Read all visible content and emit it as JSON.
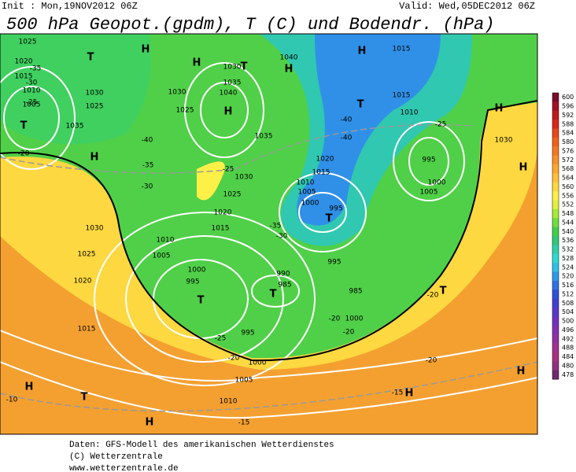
{
  "header": {
    "init": "Init : Mon,19NOV2012 06Z",
    "valid": "Valid: Wed,05DEC2012 06Z",
    "title": "500 hPa Geopot.(gpdm), T (C) und Bodendr. (hPa)"
  },
  "map": {
    "labels": [
      "1025",
      "1020",
      "1015",
      "1010",
      "1005",
      "T",
      "H",
      "T",
      "H",
      "H",
      "1030",
      "1025",
      "1030",
      "1035",
      "1040",
      "T",
      "H",
      "1040",
      "H",
      "1035",
      "1030",
      "1025",
      "1020",
      "1015",
      "1010",
      "1005",
      "1000",
      "995",
      "T",
      "990",
      "985",
      "T",
      "995",
      "1000",
      "1005",
      "1010",
      "H",
      "T",
      "H",
      "1015",
      "1020",
      "1025",
      "1030",
      "1025",
      "1030",
      "1035",
      "1020",
      "1015",
      "1010",
      "1005",
      "1000",
      "995",
      "T",
      "995",
      "985",
      "1000",
      "T",
      "1015",
      "1010",
      "1015",
      "H",
      "995",
      "1000",
      "1005",
      "1030",
      "H",
      "H",
      "T",
      "H",
      "H",
      "-35",
      "-30",
      "-25",
      "-20",
      "-40",
      "-35",
      "-30",
      "-25",
      "-40",
      "-40",
      "-35",
      "-30",
      "-25",
      "-20",
      "-20",
      "-20",
      "-25",
      "-20",
      "-20",
      "-15",
      "-15",
      "-10"
    ]
  },
  "colorbar": {
    "levels": [
      600,
      596,
      592,
      588,
      584,
      580,
      576,
      572,
      568,
      564,
      560,
      556,
      552,
      548,
      544,
      540,
      536,
      532,
      528,
      524,
      520,
      516,
      512,
      508,
      504,
      500,
      496,
      492,
      488,
      484,
      480,
      478
    ],
    "colors": [
      "#7a0a2a",
      "#a01020",
      "#c01818",
      "#d82818",
      "#e84818",
      "#f06018",
      "#f47820",
      "#f89028",
      "#fca830",
      "#fdc038",
      "#fed840",
      "#fff048",
      "#e0f040",
      "#a8e838",
      "#70dc40",
      "#40d048",
      "#30c878",
      "#30d0a8",
      "#30d8d0",
      "#30c0e8",
      "#3098e8",
      "#3070e0",
      "#3050d8",
      "#4040d0",
      "#5838c8",
      "#7030c0",
      "#8030b0",
      "#9030a0",
      "#a03090",
      "#a83080",
      "#903080",
      "#702870"
    ]
  },
  "footer": [
    "Daten: GFS-Modell des amerikanischen Wetterdienstes",
    "(C) Wetterzentrale",
    "www.wetterzentrale.de"
  ]
}
